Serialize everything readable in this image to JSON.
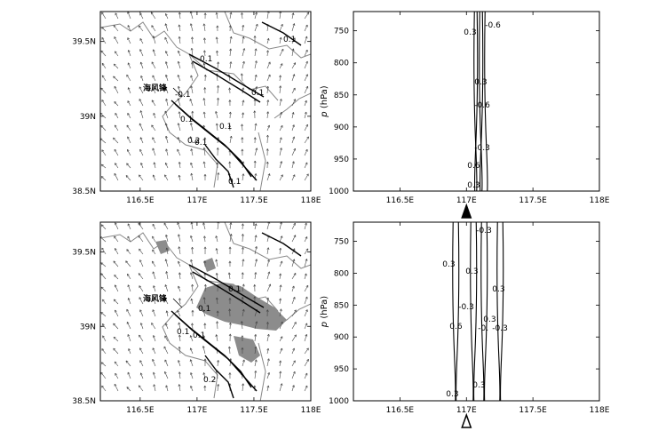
{
  "figure": {
    "place_label": "海风锋",
    "pressure_axis_label_var": "p",
    "pressure_axis_label_unit": " (hPa)"
  },
  "chart_data": [
    {
      "id": "map_top",
      "type": "map",
      "xticks": [
        "116.5E",
        "117E",
        "117.5E",
        "118E"
      ],
      "xtick_values": [
        116.5,
        117.0,
        117.5,
        118.0
      ],
      "yticks": [
        "38.5N",
        "39N",
        "39.5N"
      ],
      "ytick_values": [
        38.5,
        39.0,
        39.5
      ],
      "xlim": [
        116.15,
        118.0
      ],
      "ylim": [
        38.5,
        39.7
      ],
      "contour_labels": [
        "0.1",
        "0.1",
        "0.1",
        "-0.1",
        "0.1",
        "0.1",
        "0.1",
        "0.2",
        "0.1"
      ],
      "wind_field": "vectors"
    },
    {
      "id": "section_top",
      "type": "contour",
      "xticks": [
        "116.5E",
        "117E",
        "117.5E",
        "118E"
      ],
      "xtick_values": [
        116.5,
        117.0,
        117.5,
        118.0
      ],
      "yticks": [
        "750",
        "800",
        "850",
        "900",
        "950",
        "1000"
      ],
      "ytick_values": [
        750,
        800,
        850,
        900,
        950,
        1000
      ],
      "xlim": [
        116.15,
        118.0
      ],
      "ylim": [
        1000,
        720
      ],
      "contour_labels": [
        "-0.6",
        "0.3",
        "0.3",
        "-0.6",
        "-0.3",
        "0.6",
        "0.3"
      ],
      "marker": "filled-triangle"
    },
    {
      "id": "map_bottom",
      "type": "map",
      "xticks": [
        "116.5E",
        "117E",
        "117.5E",
        "118E"
      ],
      "xtick_values": [
        116.5,
        117.0,
        117.5,
        118.0
      ],
      "yticks": [
        "38.5N",
        "39N",
        "39.5N"
      ],
      "ytick_values": [
        38.5,
        39.0,
        39.5
      ],
      "xlim": [
        116.15,
        118.0
      ],
      "ylim": [
        38.5,
        39.7
      ],
      "contour_labels": [
        "0.1",
        "0.1",
        "0.1",
        "0.1",
        "0.2"
      ],
      "wind_field": "vectors",
      "shaded": "precipitation"
    },
    {
      "id": "section_bottom",
      "type": "contour",
      "xticks": [
        "116.5E",
        "117E",
        "117.5E",
        "118E"
      ],
      "xtick_values": [
        116.5,
        117.0,
        117.5,
        118.0
      ],
      "yticks": [
        "750",
        "800",
        "850",
        "900",
        "950",
        "1000"
      ],
      "ytick_values": [
        750,
        800,
        850,
        900,
        950,
        1000
      ],
      "xlim": [
        116.15,
        118.0
      ],
      "ylim": [
        1000,
        720
      ],
      "contour_labels": [
        "-0.3",
        "0.3",
        "0.3",
        "0.3",
        "-0.3",
        "0.3",
        "-0.",
        "-0.3",
        "0.6",
        "0.3",
        "0.3"
      ],
      "marker": "open-triangle"
    }
  ]
}
